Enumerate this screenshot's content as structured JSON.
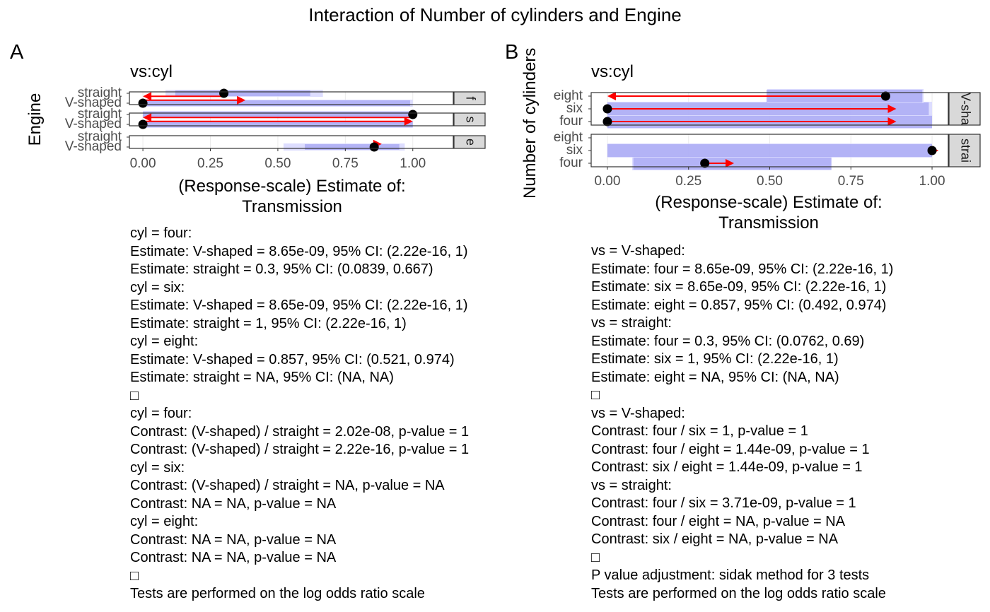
{
  "title": "Interaction of Number of cylinders and Engine",
  "chart_data": [
    {
      "type": "forest",
      "panel_tag": "A",
      "subtitle": "vs:cyl",
      "ylabel": "Engine",
      "xlabel_lines": [
        "(Response-scale) Estimate of:",
        "Transmission"
      ],
      "xlim": [
        -0.05,
        1.15
      ],
      "xticks": [
        0.0,
        0.25,
        0.5,
        0.75,
        1.0
      ],
      "xtick_labels": [
        "0.00",
        "0.25",
        "0.50",
        "0.75",
        "1.00"
      ],
      "categories": [
        "V-shaped",
        "straight"
      ],
      "facets": [
        {
          "strip": "f",
          "rows": [
            {
              "label": "V-shaped",
              "estimate": 0.0,
              "ci": [
                0.0,
                1.0
              ],
              "ci_inner": [
                0.0,
                0.99
              ]
            },
            {
              "label": "straight",
              "estimate": 0.3,
              "ci": [
                0.0839,
                0.667
              ],
              "ci_inner": [
                0.12,
                0.62
              ]
            }
          ],
          "arrows": [
            {
              "from": 0.0,
              "to": 0.38,
              "row": 0.3
            },
            {
              "from": 0.3,
              "to": 0.0,
              "row": 0.7
            }
          ]
        },
        {
          "strip": "s",
          "rows": [
            {
              "label": "V-shaped",
              "estimate": 0.0,
              "ci": [
                0.0,
                1.0
              ],
              "ci_inner": [
                0.0,
                1.0
              ]
            },
            {
              "label": "straight",
              "estimate": 1.0,
              "ci": [
                0.0,
                1.0
              ],
              "ci_inner": [
                0.0,
                1.0
              ]
            }
          ],
          "arrows": [
            {
              "from": 0.0,
              "to": 1.0,
              "row": 0.3
            },
            {
              "from": 1.0,
              "to": 0.0,
              "row": 0.7
            }
          ]
        },
        {
          "strip": "e",
          "rows": [
            {
              "label": "V-shaped",
              "estimate": 0.857,
              "ci": [
                0.521,
                0.97
              ],
              "ci_inner": [
                0.6,
                0.95
              ]
            },
            {
              "label": "straight",
              "estimate": null,
              "ci": null,
              "ci_inner": null
            }
          ],
          "arrows": [
            {
              "from": 0.857,
              "to": 0.885,
              "row": 0.3
            }
          ]
        }
      ],
      "notes": [
        "cyl = four:",
        "Estimate: V-shaped = 8.65e-09, 95% CI: (2.22e-16, 1)",
        "Estimate: straight = 0.3, 95% CI: (0.0839, 0.667)",
        "cyl = six:",
        "Estimate: V-shaped = 8.65e-09, 95% CI: (2.22e-16, 1)",
        "Estimate: straight = 1, 95% CI: (2.22e-16, 1)",
        "cyl = eight:",
        "Estimate: V-shaped = 0.857, 95% CI: (0.521, 0.974)",
        "Estimate: straight = NA, 95% CI: (NA, NA)",
        "□",
        "cyl = four:",
        "Contrast: (V-shaped) / straight = 2.02e-08, p-value = 1",
        "Contrast: (V-shaped) / straight = 2.22e-16, p-value = 1",
        "cyl = six:",
        "Contrast: (V-shaped) / straight = NA, p-value = NA",
        "Contrast: NA = NA, p-value = NA",
        "cyl = eight:",
        "Contrast: NA = NA, p-value = NA",
        "Contrast: NA = NA, p-value = NA",
        "□",
        "Tests are performed on the log odds ratio scale"
      ]
    },
    {
      "type": "forest",
      "panel_tag": "B",
      "subtitle": "vs:cyl",
      "ylabel": "Number of cylinders",
      "xlabel_lines": [
        "(Response-scale) Estimate of:",
        "Transmission"
      ],
      "xlim": [
        -0.05,
        1.05
      ],
      "xticks": [
        0.0,
        0.25,
        0.5,
        0.75,
        1.0
      ],
      "xtick_labels": [
        "0.00",
        "0.25",
        "0.50",
        "0.75",
        "1.00"
      ],
      "categories": [
        "four",
        "six",
        "eight"
      ],
      "facets": [
        {
          "strip": "V-sha",
          "rows": [
            {
              "label": "four",
              "estimate": 0.0,
              "ci": [
                0.0,
                1.0
              ],
              "ci_inner": [
                0.0,
                1.0
              ]
            },
            {
              "label": "six",
              "estimate": 0.0,
              "ci": [
                0.0,
                1.0
              ],
              "ci_inner": [
                0.0,
                0.99
              ]
            },
            {
              "label": "eight",
              "estimate": 0.857,
              "ci": [
                0.492,
                0.974
              ],
              "ci_inner": [
                0.49,
                0.97
              ]
            }
          ],
          "arrows": [
            {
              "from": 0.0,
              "to": 0.89,
              "row": 0
            },
            {
              "from": 0.0,
              "to": 0.89,
              "row": 1
            },
            {
              "from": 0.857,
              "to": 0.0,
              "row": 2
            }
          ]
        },
        {
          "strip": "strai",
          "rows": [
            {
              "label": "four",
              "estimate": 0.3,
              "ci": [
                0.0762,
                0.69
              ],
              "ci_inner": [
                0.08,
                0.69
              ]
            },
            {
              "label": "six",
              "estimate": 1.0,
              "ci": [
                0.0,
                1.0
              ],
              "ci_inner": [
                0.0,
                1.0
              ]
            },
            {
              "label": "eight",
              "estimate": null,
              "ci": null,
              "ci_inner": null
            }
          ],
          "arrows": [
            {
              "from": 0.3,
              "to": 0.39,
              "row": 0
            },
            {
              "from": 1.0,
              "to": 1.02,
              "row": 1
            }
          ]
        }
      ],
      "notes": [
        "vs = V-shaped:",
        "Estimate: four = 8.65e-09, 95% CI: (2.22e-16, 1)",
        "Estimate: six = 8.65e-09, 95% CI: (2.22e-16, 1)",
        "Estimate: eight = 0.857, 95% CI: (0.492, 0.974)",
        "vs = straight:",
        "Estimate: four = 0.3, 95% CI: (0.0762, 0.69)",
        "Estimate: six = 1, 95% CI: (2.22e-16, 1)",
        "Estimate: eight = NA, 95% CI: (NA, NA)",
        "□",
        "vs = V-shaped:",
        "Contrast: four / six = 1, p-value = 1",
        "Contrast: four / eight = 1.44e-09, p-value = 1",
        "Contrast: six / eight = 1.44e-09, p-value = 1",
        "vs = straight:",
        "Contrast: four / six = 3.71e-09, p-value = 1",
        "Contrast: four / eight = NA, p-value = NA",
        "Contrast: six / eight = NA, p-value = NA",
        "□",
        "P value adjustment: sidak method for 3 tests",
        "Tests are performed on the log odds ratio scale"
      ]
    }
  ],
  "colors": {
    "ci_outer": "#d9d9ff",
    "ci_inner": "#8f8fef",
    "arrow": "#ff0000",
    "point": "#000000",
    "strip_bg": "#d9d9d9",
    "grid": "#ebebeb"
  }
}
